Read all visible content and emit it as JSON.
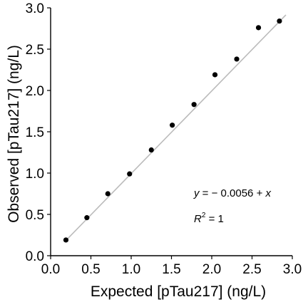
{
  "chart_data": {
    "type": "scatter",
    "title": "",
    "xlabel": "Expected [pTau217] (ng/L)",
    "ylabel": "Observed [pTau217] (ng/L)",
    "xlim": [
      0.0,
      3.0
    ],
    "ylim": [
      0.0,
      3.0
    ],
    "x_ticks": [
      "0.0",
      "0.5",
      "1.0",
      "1.5",
      "2.0",
      "2.5",
      "3.0"
    ],
    "y_ticks": [
      "0.0",
      "0.5",
      "1.0",
      "1.5",
      "2.0",
      "2.5",
      "3.0"
    ],
    "grid": false,
    "points": [
      {
        "x": 0.19,
        "y": 0.19
      },
      {
        "x": 0.45,
        "y": 0.46
      },
      {
        "x": 0.71,
        "y": 0.75
      },
      {
        "x": 0.98,
        "y": 0.99
      },
      {
        "x": 1.25,
        "y": 1.28
      },
      {
        "x": 1.51,
        "y": 1.58
      },
      {
        "x": 1.78,
        "y": 1.83
      },
      {
        "x": 2.04,
        "y": 2.19
      },
      {
        "x": 2.31,
        "y": 2.38
      },
      {
        "x": 2.58,
        "y": 2.76
      },
      {
        "x": 2.84,
        "y": 2.84
      }
    ],
    "fit_line": {
      "intercept": -0.0056,
      "slope": 1,
      "x_range": [
        0.19,
        2.84
      ],
      "color": "#bbbbbb"
    },
    "point_color": "#000000",
    "annotation": {
      "equation_lhs": "y",
      "equation_rhs": " = − 0.0056 +  ",
      "equation_var": "x",
      "r2_base": "R",
      "r2_exp": "2",
      "r2_rhs": " = 1"
    }
  }
}
